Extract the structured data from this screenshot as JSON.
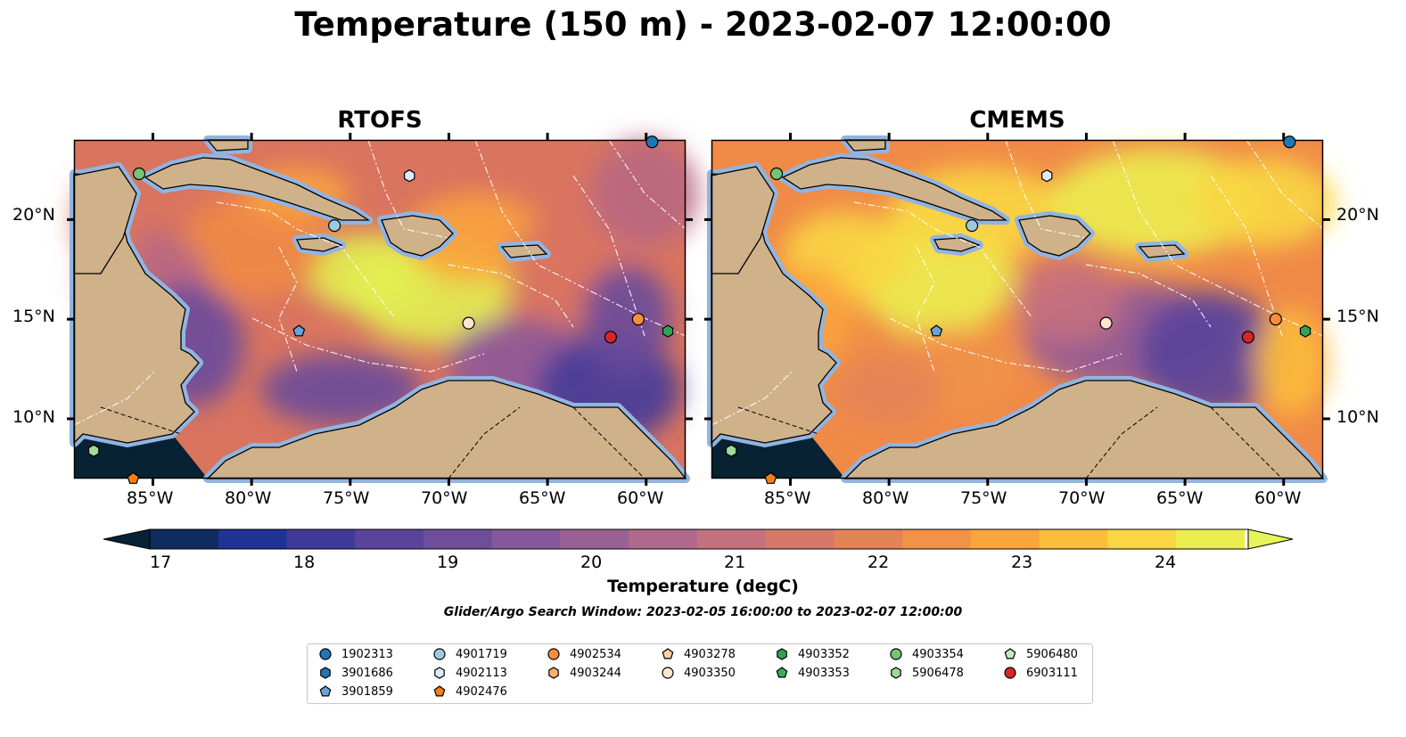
{
  "title": "Temperature (150 m) - 2023-02-07 12:00:00",
  "panels": [
    {
      "id": "rtofs",
      "title": "RTOFS"
    },
    {
      "id": "cmems",
      "title": "CMEMS"
    }
  ],
  "lon_ticks": [
    "85°W",
    "80°W",
    "75°W",
    "70°W",
    "65°W",
    "60°W"
  ],
  "lat_ticks": [
    "20°N",
    "15°N",
    "10°N"
  ],
  "colorbar": {
    "ticks": [
      "17",
      "18",
      "19",
      "20",
      "21",
      "22",
      "23",
      "24"
    ],
    "label": "Temperature (degC)",
    "min": 17,
    "max": 24.5,
    "step": 0.5,
    "colors": [
      "#062233",
      "#0e2b5e",
      "#1f3394",
      "#3f3a9a",
      "#5a439b",
      "#6e4e9a",
      "#84589a",
      "#9a6194",
      "#b0698c",
      "#c5707e",
      "#d57868",
      "#e38456",
      "#f19248",
      "#fba33d",
      "#fdbc3a",
      "#f9d642",
      "#ecee50",
      "#e7f45a"
    ]
  },
  "subtitle": "Glider/Argo Search Window: 2023-02-05 16:00:00 to 2023-02-07 12:00:00",
  "legend": [
    {
      "label": "1902313",
      "marker": "circle",
      "color": "#1f77b4"
    },
    {
      "label": "3901686",
      "marker": "hexagon",
      "color": "#1f77b4"
    },
    {
      "label": "3901859",
      "marker": "pentagon",
      "color": "#6ba3d6"
    },
    {
      "label": "4901719",
      "marker": "circle",
      "color": "#9ecae1"
    },
    {
      "label": "4902113",
      "marker": "hexagon",
      "color": "#deebf7"
    },
    {
      "label": "4902476",
      "marker": "pentagon",
      "color": "#f57f17"
    },
    {
      "label": "4902534",
      "marker": "circle",
      "color": "#fd8d3c"
    },
    {
      "label": "4903244",
      "marker": "hexagon",
      "color": "#fdae6b"
    },
    {
      "label": "4903278",
      "marker": "pentagon",
      "color": "#fdd0a2"
    },
    {
      "label": "4903350",
      "marker": "circle",
      "color": "#fee6ce"
    },
    {
      "label": "4903352",
      "marker": "hexagon",
      "color": "#31a354"
    },
    {
      "label": "4903353",
      "marker": "pentagon",
      "color": "#41ab5d"
    },
    {
      "label": "4903354",
      "marker": "circle",
      "color": "#74c476"
    },
    {
      "label": "5906478",
      "marker": "hexagon",
      "color": "#a1d99b"
    },
    {
      "label": "5906480",
      "marker": "pentagon",
      "color": "#c7e9c0"
    },
    {
      "label": "6903111",
      "marker": "circle",
      "color": "#d62728"
    }
  ],
  "floats": [
    {
      "id": "1902313",
      "lon": -59.7,
      "lat": 23.9
    },
    {
      "id": "4901719",
      "lon": -75.8,
      "lat": 19.7
    },
    {
      "id": "4902113",
      "lon": -72.0,
      "lat": 22.2
    },
    {
      "id": "3901859",
      "lon": -77.6,
      "lat": 14.4
    },
    {
      "id": "4903350",
      "lon": -69.0,
      "lat": 14.8
    },
    {
      "id": "4902534",
      "lon": -60.4,
      "lat": 15.0
    },
    {
      "id": "6903111",
      "lon": -61.8,
      "lat": 14.1
    },
    {
      "id": "4903352",
      "lon": -58.9,
      "lat": 14.4
    },
    {
      "id": "4903354",
      "lon": -85.7,
      "lat": 22.3
    },
    {
      "id": "5906478",
      "lon": -88.0,
      "lat": 8.4
    },
    {
      "id": "4902476",
      "lon": -86.0,
      "lat": 7.0
    }
  ]
}
